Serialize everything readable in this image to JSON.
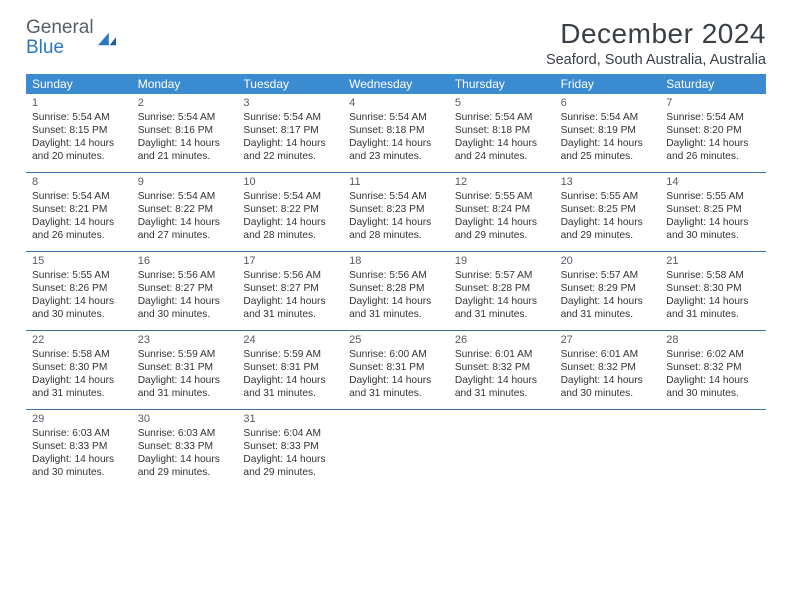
{
  "logo": {
    "general": "General",
    "blue": "Blue"
  },
  "title": "December 2024",
  "location": "Seaford, South Australia, Australia",
  "colors": {
    "header_bg": "#3b8bd0",
    "header_text": "#ffffff",
    "row_divider": "#3b6fa0",
    "text": "#333333",
    "logo_blue": "#2d77c2",
    "logo_gray": "#5a5f66"
  },
  "dow": [
    "Sunday",
    "Monday",
    "Tuesday",
    "Wednesday",
    "Thursday",
    "Friday",
    "Saturday"
  ],
  "weeks": [
    [
      {
        "n": "1",
        "sr": "Sunrise: 5:54 AM",
        "ss": "Sunset: 8:15 PM",
        "d1": "Daylight: 14 hours",
        "d2": "and 20 minutes."
      },
      {
        "n": "2",
        "sr": "Sunrise: 5:54 AM",
        "ss": "Sunset: 8:16 PM",
        "d1": "Daylight: 14 hours",
        "d2": "and 21 minutes."
      },
      {
        "n": "3",
        "sr": "Sunrise: 5:54 AM",
        "ss": "Sunset: 8:17 PM",
        "d1": "Daylight: 14 hours",
        "d2": "and 22 minutes."
      },
      {
        "n": "4",
        "sr": "Sunrise: 5:54 AM",
        "ss": "Sunset: 8:18 PM",
        "d1": "Daylight: 14 hours",
        "d2": "and 23 minutes."
      },
      {
        "n": "5",
        "sr": "Sunrise: 5:54 AM",
        "ss": "Sunset: 8:18 PM",
        "d1": "Daylight: 14 hours",
        "d2": "and 24 minutes."
      },
      {
        "n": "6",
        "sr": "Sunrise: 5:54 AM",
        "ss": "Sunset: 8:19 PM",
        "d1": "Daylight: 14 hours",
        "d2": "and 25 minutes."
      },
      {
        "n": "7",
        "sr": "Sunrise: 5:54 AM",
        "ss": "Sunset: 8:20 PM",
        "d1": "Daylight: 14 hours",
        "d2": "and 26 minutes."
      }
    ],
    [
      {
        "n": "8",
        "sr": "Sunrise: 5:54 AM",
        "ss": "Sunset: 8:21 PM",
        "d1": "Daylight: 14 hours",
        "d2": "and 26 minutes."
      },
      {
        "n": "9",
        "sr": "Sunrise: 5:54 AM",
        "ss": "Sunset: 8:22 PM",
        "d1": "Daylight: 14 hours",
        "d2": "and 27 minutes."
      },
      {
        "n": "10",
        "sr": "Sunrise: 5:54 AM",
        "ss": "Sunset: 8:22 PM",
        "d1": "Daylight: 14 hours",
        "d2": "and 28 minutes."
      },
      {
        "n": "11",
        "sr": "Sunrise: 5:54 AM",
        "ss": "Sunset: 8:23 PM",
        "d1": "Daylight: 14 hours",
        "d2": "and 28 minutes."
      },
      {
        "n": "12",
        "sr": "Sunrise: 5:55 AM",
        "ss": "Sunset: 8:24 PM",
        "d1": "Daylight: 14 hours",
        "d2": "and 29 minutes."
      },
      {
        "n": "13",
        "sr": "Sunrise: 5:55 AM",
        "ss": "Sunset: 8:25 PM",
        "d1": "Daylight: 14 hours",
        "d2": "and 29 minutes."
      },
      {
        "n": "14",
        "sr": "Sunrise: 5:55 AM",
        "ss": "Sunset: 8:25 PM",
        "d1": "Daylight: 14 hours",
        "d2": "and 30 minutes."
      }
    ],
    [
      {
        "n": "15",
        "sr": "Sunrise: 5:55 AM",
        "ss": "Sunset: 8:26 PM",
        "d1": "Daylight: 14 hours",
        "d2": "and 30 minutes."
      },
      {
        "n": "16",
        "sr": "Sunrise: 5:56 AM",
        "ss": "Sunset: 8:27 PM",
        "d1": "Daylight: 14 hours",
        "d2": "and 30 minutes."
      },
      {
        "n": "17",
        "sr": "Sunrise: 5:56 AM",
        "ss": "Sunset: 8:27 PM",
        "d1": "Daylight: 14 hours",
        "d2": "and 31 minutes."
      },
      {
        "n": "18",
        "sr": "Sunrise: 5:56 AM",
        "ss": "Sunset: 8:28 PM",
        "d1": "Daylight: 14 hours",
        "d2": "and 31 minutes."
      },
      {
        "n": "19",
        "sr": "Sunrise: 5:57 AM",
        "ss": "Sunset: 8:28 PM",
        "d1": "Daylight: 14 hours",
        "d2": "and 31 minutes."
      },
      {
        "n": "20",
        "sr": "Sunrise: 5:57 AM",
        "ss": "Sunset: 8:29 PM",
        "d1": "Daylight: 14 hours",
        "d2": "and 31 minutes."
      },
      {
        "n": "21",
        "sr": "Sunrise: 5:58 AM",
        "ss": "Sunset: 8:30 PM",
        "d1": "Daylight: 14 hours",
        "d2": "and 31 minutes."
      }
    ],
    [
      {
        "n": "22",
        "sr": "Sunrise: 5:58 AM",
        "ss": "Sunset: 8:30 PM",
        "d1": "Daylight: 14 hours",
        "d2": "and 31 minutes."
      },
      {
        "n": "23",
        "sr": "Sunrise: 5:59 AM",
        "ss": "Sunset: 8:31 PM",
        "d1": "Daylight: 14 hours",
        "d2": "and 31 minutes."
      },
      {
        "n": "24",
        "sr": "Sunrise: 5:59 AM",
        "ss": "Sunset: 8:31 PM",
        "d1": "Daylight: 14 hours",
        "d2": "and 31 minutes."
      },
      {
        "n": "25",
        "sr": "Sunrise: 6:00 AM",
        "ss": "Sunset: 8:31 PM",
        "d1": "Daylight: 14 hours",
        "d2": "and 31 minutes."
      },
      {
        "n": "26",
        "sr": "Sunrise: 6:01 AM",
        "ss": "Sunset: 8:32 PM",
        "d1": "Daylight: 14 hours",
        "d2": "and 31 minutes."
      },
      {
        "n": "27",
        "sr": "Sunrise: 6:01 AM",
        "ss": "Sunset: 8:32 PM",
        "d1": "Daylight: 14 hours",
        "d2": "and 30 minutes."
      },
      {
        "n": "28",
        "sr": "Sunrise: 6:02 AM",
        "ss": "Sunset: 8:32 PM",
        "d1": "Daylight: 14 hours",
        "d2": "and 30 minutes."
      }
    ],
    [
      {
        "n": "29",
        "sr": "Sunrise: 6:03 AM",
        "ss": "Sunset: 8:33 PM",
        "d1": "Daylight: 14 hours",
        "d2": "and 30 minutes."
      },
      {
        "n": "30",
        "sr": "Sunrise: 6:03 AM",
        "ss": "Sunset: 8:33 PM",
        "d1": "Daylight: 14 hours",
        "d2": "and 29 minutes."
      },
      {
        "n": "31",
        "sr": "Sunrise: 6:04 AM",
        "ss": "Sunset: 8:33 PM",
        "d1": "Daylight: 14 hours",
        "d2": "and 29 minutes."
      },
      null,
      null,
      null,
      null
    ]
  ]
}
